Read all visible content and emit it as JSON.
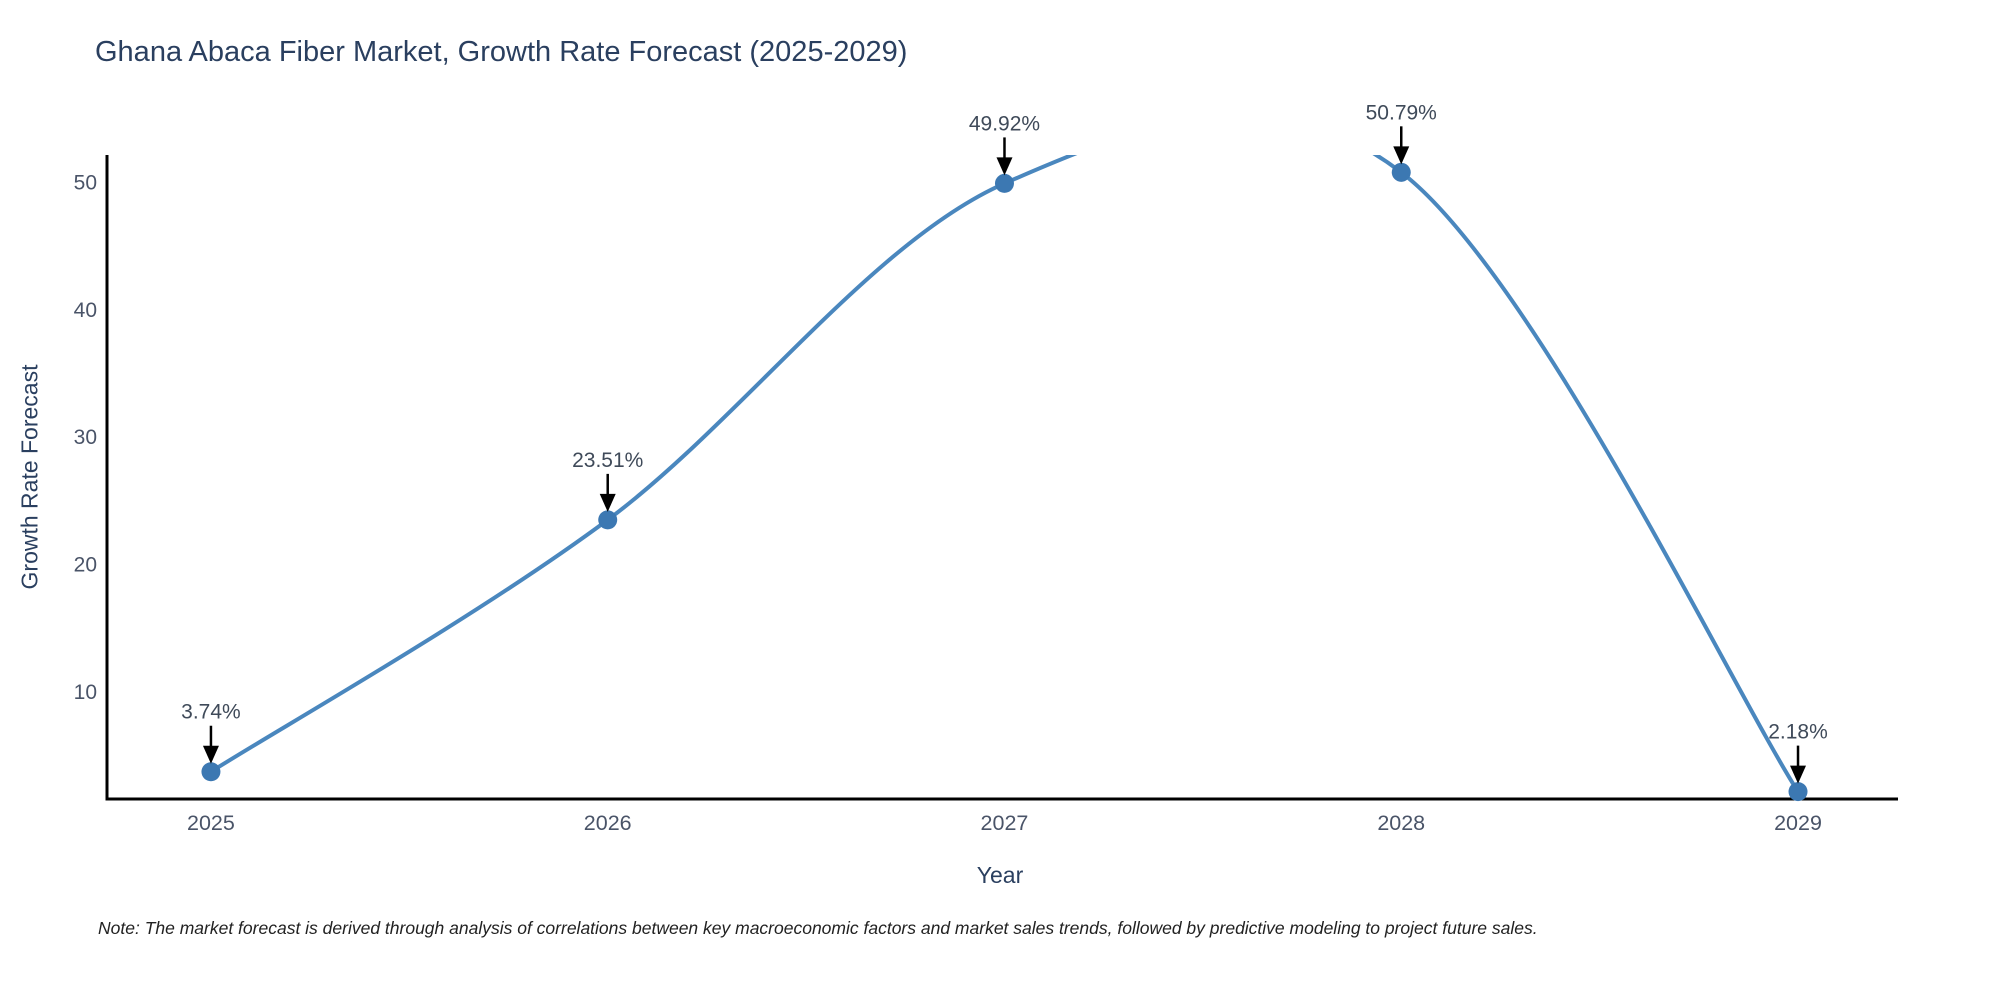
{
  "chart_data": {
    "type": "line",
    "line_shape": "spline",
    "title": "Ghana Abaca Fiber Market, Growth Rate Forecast (2025-2029)",
    "xlabel": "Year",
    "ylabel": "Growth Rate Forecast",
    "note": "Note: The market forecast is derived through analysis of correlations between key macroeconomic factors and market sales trends, followed by predictive modeling to project future sales.",
    "x": [
      2025,
      2026,
      2027,
      2028,
      2029
    ],
    "values": [
      3.74,
      23.51,
      49.92,
      50.79,
      2.18
    ],
    "point_labels": [
      "3.74%",
      "23.51%",
      "49.92%",
      "50.79%",
      "2.18%"
    ],
    "xticks": [
      "2025",
      "2026",
      "2027",
      "2028",
      "2029"
    ],
    "yticks": [
      10,
      20,
      30,
      40,
      50
    ],
    "x_range": [
      2024.738,
      2029.252
    ],
    "y_range": [
      1.6,
      52.15
    ],
    "grid": false,
    "legend": "none",
    "colors": {
      "line": "#4a87be",
      "marker": "#3c78b2",
      "arrow": "#000000",
      "axis_line": "#000000",
      "title_text": "#2a3f5f",
      "axis_title_text": "#2a3f5f",
      "tick_text": "#4a5468",
      "annotation_text": "#3f4a59",
      "note_text": "#222222",
      "background": "#ffffff"
    }
  }
}
